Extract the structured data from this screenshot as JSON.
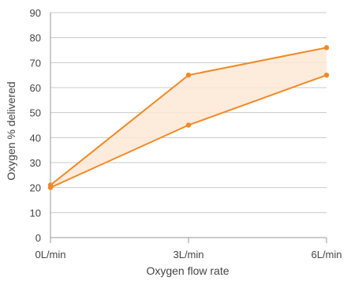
{
  "chart_data": {
    "type": "area",
    "x": [
      "0L/min",
      "3L/min",
      "6L/min"
    ],
    "series": [
      {
        "values": [
          21,
          65,
          76
        ]
      },
      {
        "values": [
          20,
          45,
          65
        ]
      }
    ],
    "xlabel": "Oxygen flow rate",
    "ylabel": "Oxygen % delivered",
    "ylim": [
      0,
      90
    ],
    "yticks": [
      0,
      10,
      20,
      30,
      40,
      50,
      60,
      70,
      80,
      90
    ],
    "grid": "horizontal",
    "colors": {
      "line": "#f08a24",
      "fill": "#fde8d6",
      "grid": "#c8c8c8",
      "axis": "#9a9a9a"
    }
  }
}
